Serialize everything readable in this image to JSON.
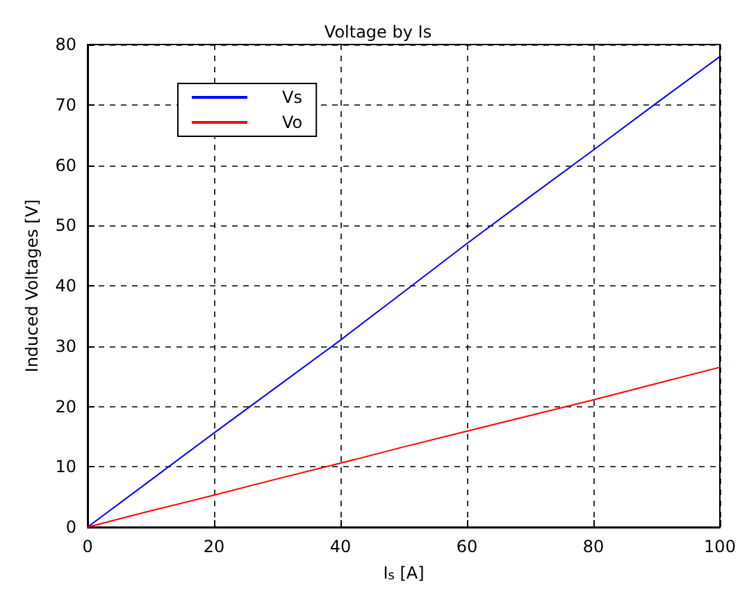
{
  "chart_data": {
    "type": "line",
    "title": "Voltage by Is",
    "xlabel": "I$_{s}$ [A]",
    "ylabel": "Induced Voltages [V]",
    "x": [
      0,
      10,
      20,
      30,
      40,
      50,
      60,
      70,
      80,
      90,
      100
    ],
    "series": [
      {
        "name": "Vs",
        "color": "#0000ff",
        "values": [
          0,
          7.8,
          15.6,
          23.3,
          31,
          39,
          47,
          54.8,
          62.5,
          70.3,
          78
        ]
      },
      {
        "name": "Vo",
        "color": "#ff0000",
        "values": [
          0,
          2.7,
          5.3,
          8,
          10.6,
          13.3,
          15.9,
          18.5,
          21.1,
          23.8,
          26.5
        ]
      }
    ],
    "xlim": [
      0,
      100
    ],
    "xticks": [
      0,
      20,
      40,
      60,
      80,
      100
    ],
    "ylim": [
      0,
      80
    ],
    "yticks": [
      0,
      10,
      20,
      30,
      40,
      50,
      60,
      70,
      80
    ],
    "grid": true,
    "legend": "top left",
    "marker": "none"
  }
}
